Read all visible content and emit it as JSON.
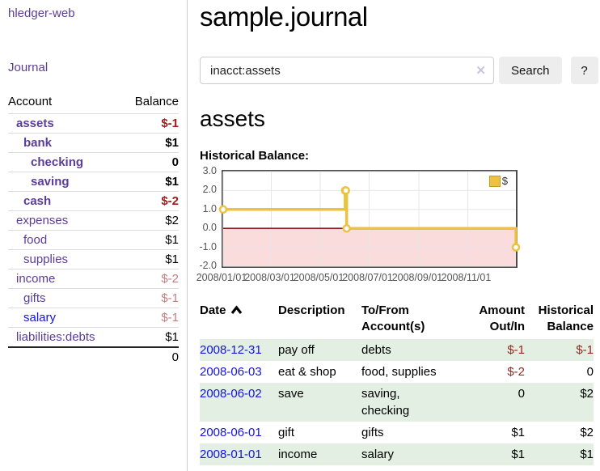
{
  "sidebar": {
    "app_title": "hledger-web",
    "nav": {
      "journal_label": "Journal"
    },
    "accounts_table": {
      "headers": {
        "account": "Account",
        "balance": "Balance"
      },
      "rows": [
        {
          "name": "assets",
          "balance": "$-1",
          "level": 0,
          "bold": true,
          "blue": false
        },
        {
          "name": "bank",
          "balance": "$1",
          "level": 1,
          "bold": true,
          "blue": false
        },
        {
          "name": "checking",
          "balance": "0",
          "level": 2,
          "bold": true,
          "blue": false
        },
        {
          "name": "saving",
          "balance": "$1",
          "level": 2,
          "bold": true,
          "blue": false
        },
        {
          "name": "cash",
          "balance": "$-2",
          "level": 1,
          "bold": true,
          "blue": false
        },
        {
          "name": "expenses",
          "balance": "$2",
          "level": 0,
          "bold": false,
          "blue": false
        },
        {
          "name": "food",
          "balance": "$1",
          "level": 1,
          "bold": false,
          "blue": false
        },
        {
          "name": "supplies",
          "balance": "$1",
          "level": 1,
          "bold": false,
          "blue": false
        },
        {
          "name": "income",
          "balance": "$-2",
          "level": 0,
          "bold": false,
          "blue": false
        },
        {
          "name": "gifts",
          "balance": "$-1",
          "level": 1,
          "bold": false,
          "blue": false
        },
        {
          "name": "salary",
          "balance": "$-1",
          "level": 1,
          "bold": false,
          "blue": true
        },
        {
          "name": "liabilities:debts",
          "balance": "$1",
          "level": 0,
          "bold": false,
          "blue": false
        }
      ],
      "total": "0"
    }
  },
  "header": {
    "title": "sample.journal"
  },
  "search": {
    "value": "inacct:assets",
    "clear_icon": "✕",
    "button_label": "Search",
    "help_label": "?"
  },
  "main": {
    "account_heading": "assets",
    "chart_label": "Historical Balance:"
  },
  "chart_data": {
    "type": "line",
    "title": "Historical Balance",
    "style": "step",
    "series": [
      {
        "name": "$",
        "color": "#EDC240",
        "points": [
          [
            "2008-01-01",
            1
          ],
          [
            "2008-06-01",
            2
          ],
          [
            "2008-06-02",
            2
          ],
          [
            "2008-06-03",
            0
          ],
          [
            "2008-12-31",
            -1
          ]
        ]
      }
    ],
    "xrange": [
      "2008-01-01",
      "2008-12-31"
    ],
    "ylim": [
      -2,
      3
    ],
    "yticks": [
      3.0,
      2.0,
      1.0,
      0.0,
      -1.0,
      -2.0
    ],
    "xticks": [
      "2008/01/01",
      "2008/03/01",
      "2008/05/01",
      "2008/07/01",
      "2008/09/01",
      "2008/11/01"
    ],
    "legend": {
      "label": "$",
      "position": "top-right"
    },
    "grid": true,
    "zero_line_color": "#8b1a1a",
    "negative_region_color": "#fbdcdc",
    "gridline_color": "#e6e6e6"
  },
  "transactions": {
    "headers": {
      "date": "Date",
      "description": "Description",
      "accounts": "To/From Account(s)",
      "amount": "Amount Out/In",
      "balance": "Historical Balance"
    },
    "rows": [
      {
        "date": "2008-12-31",
        "description": "pay off",
        "accounts": "debts",
        "amount": "$-1",
        "balance": "$-1"
      },
      {
        "date": "2008-06-03",
        "description": "eat & shop",
        "accounts": "food, supplies",
        "amount": "$-2",
        "balance": "0"
      },
      {
        "date": "2008-06-02",
        "description": "save",
        "accounts": "saving, checking",
        "amount": "0",
        "balance": "$2"
      },
      {
        "date": "2008-06-01",
        "description": "gift",
        "accounts": "gifts",
        "amount": "$1",
        "balance": "$2"
      },
      {
        "date": "2008-01-01",
        "description": "income",
        "accounts": "salary",
        "amount": "$1",
        "balance": "$1"
      }
    ]
  },
  "colors": {
    "link_purple": "#5b3d99",
    "link_blue": "#1414e0",
    "negative_strong": "#9e1b1b",
    "negative_soft": "#c08080",
    "negative_table": "#8f2a21",
    "row_stripe_green": "#e2efe2",
    "series_gold": "#EDC240"
  }
}
